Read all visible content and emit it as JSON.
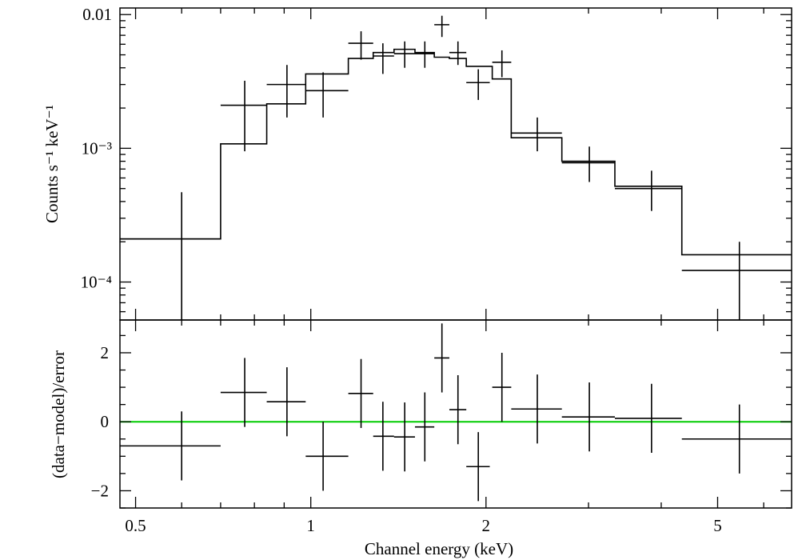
{
  "colors": {
    "data": "#000000",
    "model": "#000000",
    "zero_line": "#00cc00",
    "background": "#ffffff"
  },
  "x_axis": {
    "label": "Channel energy (keV)",
    "scale": "log",
    "range": [
      0.47,
      6.7
    ],
    "tick_labels": [
      {
        "value": 0.5,
        "text": "0.5"
      },
      {
        "value": 1,
        "text": "1"
      },
      {
        "value": 2,
        "text": "2"
      },
      {
        "value": 5,
        "text": "5"
      }
    ]
  },
  "chart_data": [
    {
      "type": "scatter",
      "panel": "spectrum",
      "ylabel": "Counts s⁻¹ keV⁻¹",
      "yscale": "log",
      "ylim": [
        5.2e-05,
        0.0112
      ],
      "ytick_labels": [
        {
          "value": 0.0001,
          "text": "10⁻⁴"
        },
        {
          "value": 0.001,
          "text": "10⁻³"
        },
        {
          "value": 0.01,
          "text": "0.01"
        }
      ],
      "series": [
        {
          "name": "data",
          "style": "error-crosses",
          "points": [
            {
              "x": 0.6,
              "xlo": 0.47,
              "xhi": 0.7,
              "y": 0.00021,
              "ylo": 5e-05,
              "yhi": 0.00047
            },
            {
              "x": 0.77,
              "xlo": 0.7,
              "xhi": 0.84,
              "y": 0.0021,
              "ylo": 0.00095,
              "yhi": 0.0032
            },
            {
              "x": 0.91,
              "xlo": 0.84,
              "xhi": 0.98,
              "y": 0.003,
              "ylo": 0.0017,
              "yhi": 0.0042
            },
            {
              "x": 1.05,
              "xlo": 0.98,
              "xhi": 1.16,
              "y": 0.0027,
              "ylo": 0.0017,
              "yhi": 0.0037
            },
            {
              "x": 1.22,
              "xlo": 1.16,
              "xhi": 1.28,
              "y": 0.0061,
              "ylo": 0.0046,
              "yhi": 0.0075
            },
            {
              "x": 1.33,
              "xlo": 1.28,
              "xhi": 1.39,
              "y": 0.0049,
              "ylo": 0.0036,
              "yhi": 0.0061
            },
            {
              "x": 1.45,
              "xlo": 1.39,
              "xhi": 1.51,
              "y": 0.0051,
              "ylo": 0.004,
              "yhi": 0.0063
            },
            {
              "x": 1.57,
              "xlo": 1.51,
              "xhi": 1.63,
              "y": 0.0051,
              "ylo": 0.004,
              "yhi": 0.0063
            },
            {
              "x": 1.68,
              "xlo": 1.63,
              "xhi": 1.73,
              "y": 0.0084,
              "ylo": 0.0068,
              "yhi": 0.0098
            },
            {
              "x": 1.79,
              "xlo": 1.73,
              "xhi": 1.85,
              "y": 0.0052,
              "ylo": 0.0042,
              "yhi": 0.0063
            },
            {
              "x": 1.94,
              "xlo": 1.85,
              "xhi": 2.03,
              "y": 0.0031,
              "ylo": 0.0023,
              "yhi": 0.0039
            },
            {
              "x": 2.13,
              "xlo": 2.05,
              "xhi": 2.21,
              "y": 0.0044,
              "ylo": 0.0034,
              "yhi": 0.0054
            },
            {
              "x": 2.45,
              "xlo": 2.21,
              "xhi": 2.7,
              "y": 0.0013,
              "ylo": 0.00095,
              "yhi": 0.0017
            },
            {
              "x": 3.01,
              "xlo": 2.7,
              "xhi": 3.33,
              "y": 0.00078,
              "ylo": 0.00056,
              "yhi": 0.00103
            },
            {
              "x": 3.85,
              "xlo": 3.33,
              "xhi": 4.34,
              "y": 0.0005,
              "ylo": 0.00034,
              "yhi": 0.00068
            },
            {
              "x": 5.45,
              "xlo": 4.34,
              "xhi": 6.7,
              "y": 0.000122,
              "ylo": 5e-05,
              "yhi": 0.0002
            }
          ]
        },
        {
          "name": "model",
          "style": "step",
          "edges": [
            0.47,
            0.7,
            0.84,
            0.98,
            1.16,
            1.28,
            1.39,
            1.51,
            1.63,
            1.73,
            1.85,
            2.05,
            2.21,
            2.7,
            3.33,
            4.34,
            6.7
          ],
          "values": [
            0.00021,
            0.00108,
            0.00215,
            0.0036,
            0.0047,
            0.0052,
            0.0055,
            0.0052,
            0.0048,
            0.0047,
            0.0041,
            0.0033,
            0.0012,
            0.0008,
            0.00052,
            0.00016
          ]
        }
      ]
    },
    {
      "type": "scatter",
      "panel": "residuals",
      "ylabel": "(data−model)/error",
      "ylim": [
        -2.5,
        2.95
      ],
      "ytick_labels": [
        {
          "value": -2,
          "text": "−2"
        },
        {
          "value": 0,
          "text": "0"
        },
        {
          "value": 2,
          "text": "2"
        }
      ],
      "reference_line": {
        "y": 0,
        "color": "#00cc00"
      },
      "series": [
        {
          "name": "residuals",
          "style": "error-crosses",
          "points": [
            {
              "x": 0.6,
              "xlo": 0.47,
              "xhi": 0.7,
              "y": -0.7,
              "ylo": -1.7,
              "yhi": 0.3
            },
            {
              "x": 0.77,
              "xlo": 0.7,
              "xhi": 0.84,
              "y": 0.85,
              "ylo": -0.15,
              "yhi": 1.85
            },
            {
              "x": 0.91,
              "xlo": 0.84,
              "xhi": 0.98,
              "y": 0.58,
              "ylo": -0.42,
              "yhi": 1.58
            },
            {
              "x": 1.05,
              "xlo": 0.98,
              "xhi": 1.16,
              "y": -1.0,
              "ylo": -2.0,
              "yhi": 0.0
            },
            {
              "x": 1.22,
              "xlo": 1.16,
              "xhi": 1.28,
              "y": 0.82,
              "ylo": -0.18,
              "yhi": 1.82
            },
            {
              "x": 1.33,
              "xlo": 1.28,
              "xhi": 1.39,
              "y": -0.42,
              "ylo": -1.42,
              "yhi": 0.58
            },
            {
              "x": 1.45,
              "xlo": 1.39,
              "xhi": 1.51,
              "y": -0.44,
              "ylo": -1.44,
              "yhi": 0.56
            },
            {
              "x": 1.57,
              "xlo": 1.51,
              "xhi": 1.63,
              "y": -0.15,
              "ylo": -1.15,
              "yhi": 0.85
            },
            {
              "x": 1.68,
              "xlo": 1.63,
              "xhi": 1.73,
              "y": 1.85,
              "ylo": 0.85,
              "yhi": 2.85
            },
            {
              "x": 1.79,
              "xlo": 1.73,
              "xhi": 1.85,
              "y": 0.35,
              "ylo": -0.65,
              "yhi": 1.35
            },
            {
              "x": 1.94,
              "xlo": 1.85,
              "xhi": 2.03,
              "y": -1.3,
              "ylo": -2.3,
              "yhi": -0.3
            },
            {
              "x": 2.13,
              "xlo": 2.05,
              "xhi": 2.21,
              "y": 1.0,
              "ylo": 0.0,
              "yhi": 2.0
            },
            {
              "x": 2.45,
              "xlo": 2.21,
              "xhi": 2.7,
              "y": 0.37,
              "ylo": -0.63,
              "yhi": 1.37
            },
            {
              "x": 3.01,
              "xlo": 2.7,
              "xhi": 3.33,
              "y": 0.14,
              "ylo": -0.86,
              "yhi": 1.14
            },
            {
              "x": 3.85,
              "xlo": 3.33,
              "xhi": 4.34,
              "y": 0.1,
              "ylo": -0.9,
              "yhi": 1.1
            },
            {
              "x": 5.45,
              "xlo": 4.34,
              "xhi": 6.7,
              "y": -0.5,
              "ylo": -1.5,
              "yhi": 0.5
            }
          ]
        }
      ]
    }
  ]
}
